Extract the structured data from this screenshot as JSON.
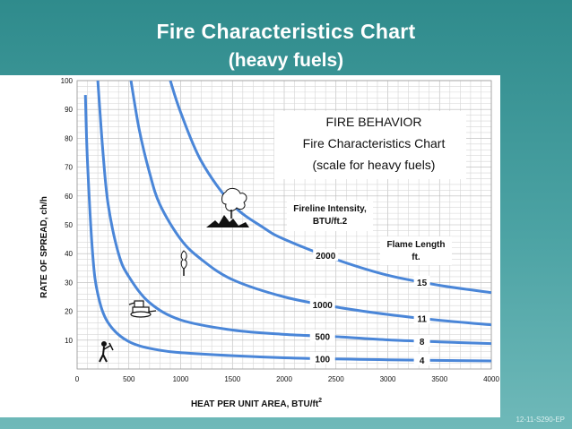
{
  "slide": {
    "title": "Fire Characteristics Chart",
    "subtitle": "(heavy fuels)",
    "footer_code": "12-11-S290-EP"
  },
  "chart_data": {
    "type": "line",
    "title": "FIRE BEHAVIOR",
    "subtitle_lines": [
      "Fire Characteristics Chart",
      "(scale for heavy fuels)"
    ],
    "xlabel": "HEAT PER UNIT AREA, BTU/ft",
    "xlabel_superscript": "2",
    "ylabel": "RATE OF SPREAD, ch/h",
    "xlim": [
      0,
      4000
    ],
    "ylim": [
      0,
      100
    ],
    "x_ticks": [
      0,
      500,
      1000,
      1500,
      2000,
      2500,
      3000,
      3500,
      4000
    ],
    "y_ticks": [
      10,
      20,
      30,
      40,
      50,
      60,
      70,
      80,
      90,
      100
    ],
    "grid": true,
    "series_header": {
      "line1": "Fireline Intensity,",
      "line2": "BTU/ft.2"
    },
    "flame_header": {
      "line1": "Flame Length",
      "line2": "ft."
    },
    "series": [
      {
        "intensity": "100",
        "flame": "4",
        "label_x": 2370,
        "points": [
          [
            80,
            95
          ],
          [
            100,
            72
          ],
          [
            150,
            40
          ],
          [
            200,
            26
          ],
          [
            300,
            16
          ],
          [
            500,
            9.5
          ],
          [
            800,
            6.5
          ],
          [
            1200,
            5.2
          ],
          [
            2000,
            3.9
          ],
          [
            3000,
            3.2
          ],
          [
            4000,
            2.8
          ]
        ]
      },
      {
        "intensity": "500",
        "flame": "8",
        "label_x": 2370,
        "points": [
          [
            200,
            100
          ],
          [
            250,
            75
          ],
          [
            300,
            57
          ],
          [
            400,
            40
          ],
          [
            500,
            32
          ],
          [
            700,
            23
          ],
          [
            1000,
            17
          ],
          [
            1500,
            13.5
          ],
          [
            2000,
            12
          ],
          [
            2500,
            11.2
          ],
          [
            3000,
            10.1
          ],
          [
            3500,
            9.4
          ],
          [
            4000,
            8.8
          ]
        ]
      },
      {
        "intensity": "1000",
        "flame": "11",
        "label_x": 2370,
        "points": [
          [
            520,
            100
          ],
          [
            600,
            83
          ],
          [
            700,
            68
          ],
          [
            800,
            57
          ],
          [
            1000,
            45
          ],
          [
            1200,
            38
          ],
          [
            1500,
            31
          ],
          [
            2000,
            25
          ],
          [
            2500,
            21.5
          ],
          [
            3000,
            18.9
          ],
          [
            3500,
            16.9
          ],
          [
            4000,
            15.3
          ]
        ]
      },
      {
        "intensity": "2000",
        "flame": "15",
        "label_x": 2400,
        "points": [
          [
            900,
            100
          ],
          [
            1000,
            89
          ],
          [
            1200,
            72
          ],
          [
            1500,
            57
          ],
          [
            1800,
            49
          ],
          [
            2000,
            45
          ],
          [
            2500,
            38
          ],
          [
            3000,
            32.5
          ],
          [
            3500,
            29
          ],
          [
            4000,
            26.5
          ]
        ]
      }
    ],
    "icons": [
      "hand-tool-crew-icon",
      "dozer-icon",
      "torching-tree-icon",
      "crown-fire-icon"
    ]
  }
}
